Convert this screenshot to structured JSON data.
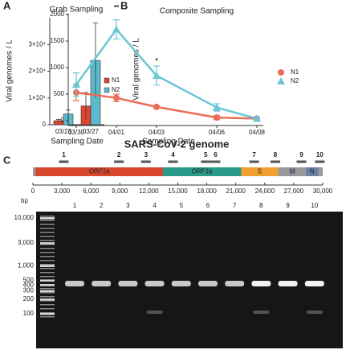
{
  "panels": [
    "A",
    "B",
    "C"
  ],
  "chart_data": [
    {
      "type": "bar",
      "title": "Grab Sampling",
      "xlabel": "Sampling Date",
      "ylabel": "Viral genomes / L",
      "categories": [
        "03/23",
        "03/27"
      ],
      "series": [
        {
          "name": "N1",
          "color": "#e0452f",
          "values": [
            1500,
            7000
          ],
          "errors": [
            500,
            5000
          ]
        },
        {
          "name": "N2",
          "color": "#5bbacd",
          "values": [
            4000,
            24000
          ],
          "errors": [
            1500,
            14000
          ]
        }
      ],
      "ylim": [
        0,
        40000
      ],
      "yticks": [
        0,
        {
          "value": 10000,
          "label": "1×10⁴"
        },
        {
          "value": 20000,
          "label": "2×10⁴"
        },
        {
          "value": 30000,
          "label": "3×10⁴"
        }
      ]
    },
    {
      "type": "line",
      "title": "Composite Sampling",
      "xlabel": "Sampling Date",
      "ylabel": "Viral genomes / L",
      "categories": [
        "03/30",
        "04/01",
        "04/03",
        "04/06",
        "04/08"
      ],
      "series": [
        {
          "name": "N1",
          "color": "#ec6d55",
          "marker": "circle",
          "values": [
            530,
            430,
            260,
            60,
            40
          ],
          "errors": [
            150,
            70,
            20,
            40,
            20
          ]
        },
        {
          "name": "N2",
          "color": "#6cc6d3",
          "marker": "triangle",
          "values": [
            680,
            1720,
            850,
            250,
            40
          ],
          "errors": [
            220,
            180,
            180,
            70,
            20
          ]
        }
      ],
      "annotations": [
        "**",
        "*"
      ],
      "ylim": [
        -90,
        2020
      ],
      "yticks": [
        0,
        500,
        1000,
        1500,
        2000
      ]
    }
  ],
  "genome": {
    "title": "SARS-CoV-2 genome",
    "xlim": [
      0,
      30000
    ],
    "xticks": [
      0,
      {
        "value": 3000,
        "label": "3,000"
      },
      {
        "value": 6000,
        "label": "6,000"
      },
      {
        "value": 9000,
        "label": "9,000"
      },
      {
        "value": 12000,
        "label": "12,000"
      },
      {
        "value": 15000,
        "label": "15,000"
      },
      {
        "value": 18000,
        "label": "18,000"
      },
      {
        "value": 21000,
        "label": "21,000"
      },
      {
        "value": 24000,
        "label": "24,000"
      },
      {
        "value": 27000,
        "label": "27,000"
      },
      {
        "value": 30000,
        "label": "30,000"
      }
    ],
    "genes": [
      {
        "label": "ORF1a",
        "start": 266,
        "end": 13483,
        "color": "#d9462f"
      },
      {
        "label": "ORF1b",
        "start": 13468,
        "end": 21555,
        "color": "#2a9a8a"
      },
      {
        "label": "S",
        "start": 21563,
        "end": 25384,
        "color": "#f0a030"
      },
      {
        "label": "M",
        "start": 26523,
        "end": 27191,
        "color": "#8d8fa3"
      },
      {
        "label": "N",
        "start": 28274,
        "end": 29533,
        "color": "#6a7fa8"
      }
    ],
    "amplicons": [
      {
        "label": "1",
        "position": 3200
      },
      {
        "label": "2",
        "position": 8900
      },
      {
        "label": "3",
        "position": 11700
      },
      {
        "label": "4",
        "position": 14500
      },
      {
        "label": "5",
        "position": 17900
      },
      {
        "label": "6",
        "position": 18900
      },
      {
        "label": "7",
        "position": 22900
      },
      {
        "label": "8",
        "position": 25100
      },
      {
        "label": "9",
        "position": 27800
      },
      {
        "label": "10",
        "position": 29700
      }
    ]
  },
  "gel": {
    "unit": "bp",
    "ladder": [
      {
        "value": 10000,
        "label": "10,000"
      },
      {
        "value": 3000,
        "label": "3,000"
      },
      {
        "value": 1000,
        "label": "1,000"
      },
      500,
      400,
      300,
      200,
      100
    ],
    "lanes": [
      "1",
      "2",
      "3",
      "4",
      "5",
      "6",
      "7",
      "8",
      "9",
      "10"
    ]
  }
}
